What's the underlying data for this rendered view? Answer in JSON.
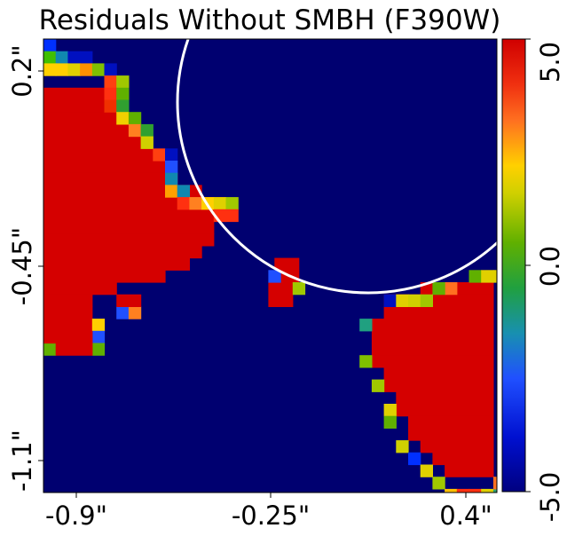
{
  "chart_data": {
    "type": "heatmap",
    "title": "Residuals Without SMBH (F390W)",
    "x_ticks": [
      "-0.9\"",
      "-0.25\"",
      "0.4\""
    ],
    "y_ticks": [
      "0.2\"",
      "-0.45\"",
      "-1.1\""
    ],
    "colorbar": {
      "ticks": [
        "5.0",
        "0.0",
        "-5.0"
      ],
      "range": [
        -5.0,
        5.0
      ],
      "colormap": "jet-like (dark blue -> blue -> teal -> green -> yellow -> orange -> red)"
    },
    "background_value": -5.0,
    "overlay": "white circle outline (upper right)",
    "regions": [
      {
        "name": "upper-left saturated blob",
        "value": 5.0
      },
      {
        "name": "center small blob",
        "value": 5.0
      },
      {
        "name": "lower-right saturated blob",
        "value": 5.0
      }
    ],
    "grid": false
  }
}
